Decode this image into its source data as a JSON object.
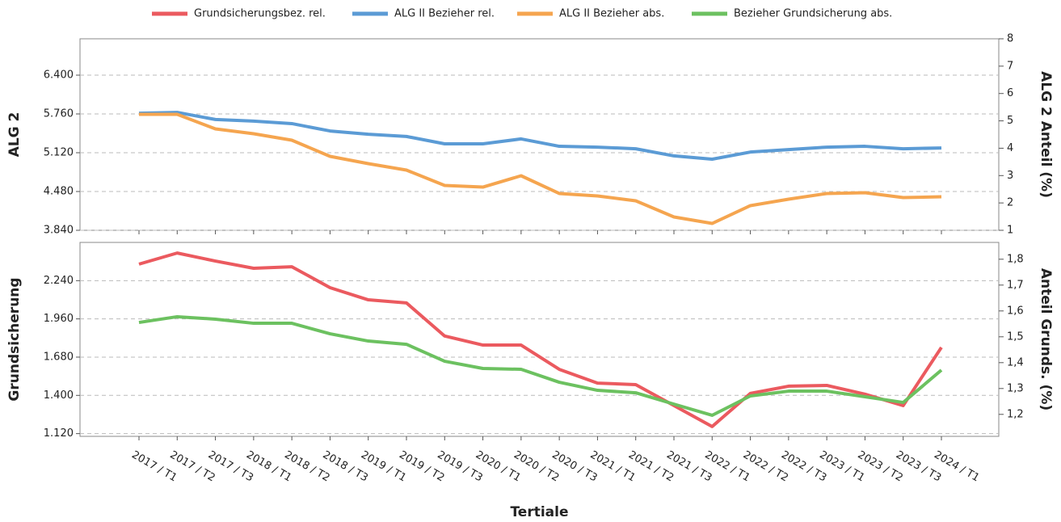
{
  "chart_data": [
    {
      "type": "line",
      "ylabel": "ALG 2",
      "y2label": "ALG 2 Anteil (%)",
      "ylim": [
        3840,
        7000
      ],
      "yticks": [
        {
          "value": 3840,
          "label": "3.840"
        },
        {
          "value": 4480,
          "label": "4.480"
        },
        {
          "value": 5120,
          "label": "5.120"
        },
        {
          "value": 5760,
          "label": "5.760"
        },
        {
          "value": 6400,
          "label": "6.400"
        }
      ],
      "y2lim": [
        1,
        8
      ],
      "y2ticks": [
        1,
        2,
        3,
        4,
        5,
        6,
        7,
        8
      ],
      "grid": true,
      "series": [
        {
          "name": "ALG II Bezieher rel.",
          "color": "#5b9bd5",
          "axis": "y2",
          "values": [
            5.28,
            5.31,
            5.05,
            4.99,
            4.9,
            4.63,
            4.51,
            4.43,
            4.16,
            4.16,
            4.34,
            4.07,
            4.04,
            3.98,
            3.72,
            3.6,
            3.86,
            3.95,
            4.04,
            4.07,
            3.98,
            4.01
          ]
        },
        {
          "name": "ALG II Bezieher abs.",
          "color": "#f5a54f",
          "values": [
            5753,
            5753,
            5513,
            5433,
            5327,
            5060,
            4940,
            4833,
            4580,
            4553,
            4740,
            4447,
            4407,
            4327,
            4060,
            3953,
            4247,
            4353,
            4447,
            4460,
            4380,
            4393
          ]
        }
      ]
    },
    {
      "type": "line",
      "ylabel": "Grundsicherung",
      "y2label": "Anteil Grunds. (%)",
      "xlabel": "Tertiale",
      "categories": [
        "2017 / T1",
        "2017 / T2",
        "2017 / T3",
        "2018 / T1",
        "2018 / T2",
        "2018 / T3",
        "2019 / T1",
        "2019 / T2",
        "2019 / T3",
        "2020 / T1",
        "2020 / T2",
        "2020 / T3",
        "2021 / T1",
        "2021 / T2",
        "2021 / T3",
        "2022 / T1",
        "2022 / T2",
        "2022 / T3",
        "2023 / T1",
        "2023 / T2",
        "2023 / T3",
        "2024 / T1"
      ],
      "ylim": [
        1100,
        2520
      ],
      "yticks": [
        {
          "value": 1120,
          "label": "1.120"
        },
        {
          "value": 1400,
          "label": "1.400"
        },
        {
          "value": 1680,
          "label": "1.680"
        },
        {
          "value": 1960,
          "label": "1.960"
        },
        {
          "value": 2240,
          "label": "2.240"
        }
      ],
      "y2lim": [
        1.115,
        1.865
      ],
      "y2ticks": [
        {
          "value": 1.2,
          "label": "1,2"
        },
        {
          "value": 1.3,
          "label": "1,3"
        },
        {
          "value": 1.4,
          "label": "1,4"
        },
        {
          "value": 1.5,
          "label": "1,5"
        },
        {
          "value": 1.6,
          "label": "1,6"
        },
        {
          "value": 1.7,
          "label": "1,7"
        },
        {
          "value": 1.8,
          "label": "1,8"
        }
      ],
      "grid": true,
      "series": [
        {
          "name": "Grundsicherungsbez. rel.",
          "color": "#eb5a5f",
          "axis": "y2",
          "values": [
            1.781,
            1.824,
            1.793,
            1.765,
            1.771,
            1.69,
            1.643,
            1.631,
            1.503,
            1.468,
            1.468,
            1.374,
            1.321,
            1.315,
            1.234,
            1.153,
            1.281,
            1.309,
            1.312,
            1.278,
            1.234,
            1.459
          ]
        },
        {
          "name": "Bezieher Grundsicherung abs.",
          "color": "#6cc160",
          "values": [
            1934,
            1976,
            1958,
            1928,
            1928,
            1851,
            1798,
            1774,
            1650,
            1597,
            1591,
            1496,
            1437,
            1419,
            1336,
            1254,
            1396,
            1431,
            1431,
            1390,
            1348,
            1585
          ]
        }
      ]
    }
  ]
}
